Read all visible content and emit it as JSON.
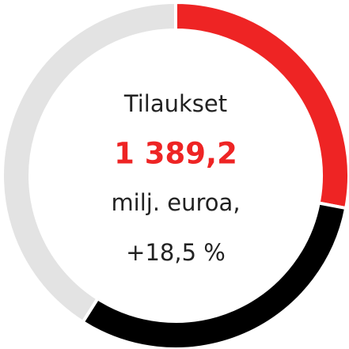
{
  "chart_data": {
    "type": "donut",
    "values": [
      28,
      31,
      41
    ],
    "colors": [
      "#ee2424",
      "#000000",
      "#e3e3e3"
    ],
    "title": "Tilaukset",
    "annotations": [
      "1 389,2",
      "milj. euroa,",
      "+18,5 %"
    ],
    "annotation_colors": [
      "#ee2424",
      "#222222",
      "#222222"
    ]
  }
}
